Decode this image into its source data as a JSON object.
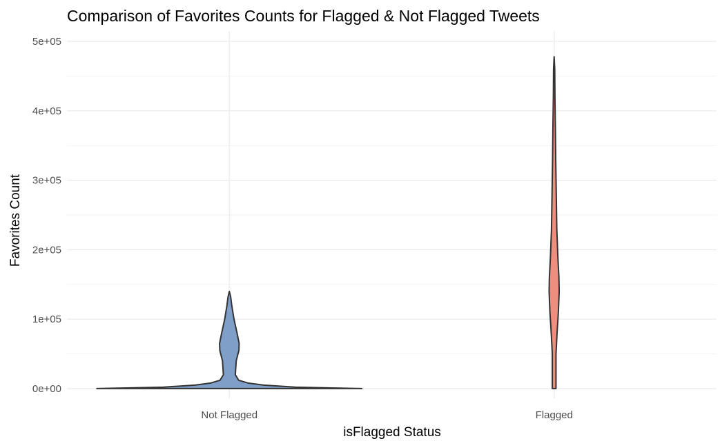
{
  "chart_data": {
    "type": "violin",
    "title": "Comparison of Favorites Counts for Flagged & Not Flagged Tweets",
    "xlabel": "isFlagged Status",
    "ylabel": "Favorites Count",
    "categories": [
      "Not Flagged",
      "Flagged"
    ],
    "ylim": [
      0,
      500000
    ],
    "y_ticks": [
      0,
      100000,
      200000,
      300000,
      400000,
      500000
    ],
    "y_tick_labels": [
      "0e+00",
      "1e+05",
      "2e+05",
      "3e+05",
      "4e+05",
      "5e+05"
    ],
    "grid": true,
    "legend": "none",
    "series": [
      {
        "category": "Not Flagged",
        "color": "#7f9fc8",
        "min": 0,
        "max": 140000,
        "density_profile": [
          [
            0,
            1.0
          ],
          [
            1000,
            0.74
          ],
          [
            2000,
            0.5
          ],
          [
            5000,
            0.26
          ],
          [
            8000,
            0.14
          ],
          [
            12000,
            0.07
          ],
          [
            20000,
            0.045
          ],
          [
            40000,
            0.052
          ],
          [
            55000,
            0.072
          ],
          [
            65000,
            0.074
          ],
          [
            80000,
            0.058
          ],
          [
            100000,
            0.035
          ],
          [
            120000,
            0.018
          ],
          [
            132000,
            0.01
          ],
          [
            140000,
            0.0
          ]
        ]
      },
      {
        "category": "Flagged",
        "color": "#ee8e7e",
        "min": 0,
        "max": 478000,
        "density_profile": [
          [
            0,
            0.014
          ],
          [
            50000,
            0.014
          ],
          [
            80000,
            0.022
          ],
          [
            110000,
            0.032
          ],
          [
            140000,
            0.038
          ],
          [
            160000,
            0.036
          ],
          [
            190000,
            0.028
          ],
          [
            230000,
            0.02
          ],
          [
            280000,
            0.016
          ],
          [
            330000,
            0.012
          ],
          [
            380000,
            0.009
          ],
          [
            420000,
            0.006
          ],
          [
            460000,
            0.0045
          ],
          [
            478000,
            0.0
          ]
        ]
      }
    ]
  }
}
